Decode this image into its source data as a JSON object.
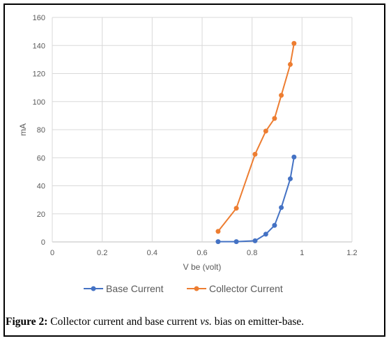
{
  "caption": {
    "label": "Figure 2:",
    "text_before": "Collector current and base current",
    "vs": "vs.",
    "text_after": "bias on emitter-base."
  },
  "chart_data": {
    "type": "line",
    "xlabel": "V be (volt)",
    "ylabel": "mA",
    "xlim": [
      0,
      1.2
    ],
    "ylim": [
      0,
      160
    ],
    "x_ticks": [
      "0",
      "0.2",
      "0.4",
      "0.6",
      "0.8",
      "1",
      "1.2"
    ],
    "y_ticks": [
      "0",
      "20",
      "40",
      "60",
      "80",
      "100",
      "120",
      "140",
      "160"
    ],
    "grid": true,
    "legend_position": "bottom",
    "series": [
      {
        "name": "Base Current",
        "color": "#4472C4",
        "points": [
          [
            0.664,
            0.2
          ],
          [
            0.737,
            0.2
          ],
          [
            0.812,
            0.8
          ],
          [
            0.855,
            5.5
          ],
          [
            0.89,
            11.8
          ],
          [
            0.917,
            24.5
          ],
          [
            0.953,
            45
          ],
          [
            0.968,
            60.5
          ]
        ]
      },
      {
        "name": "Collector Current",
        "color": "#ED7D31",
        "points": [
          [
            0.664,
            7.5
          ],
          [
            0.737,
            24
          ],
          [
            0.812,
            62.5
          ],
          [
            0.855,
            79
          ],
          [
            0.89,
            88
          ],
          [
            0.917,
            104.5
          ],
          [
            0.953,
            126.5
          ],
          [
            0.968,
            141.5
          ]
        ]
      }
    ]
  }
}
